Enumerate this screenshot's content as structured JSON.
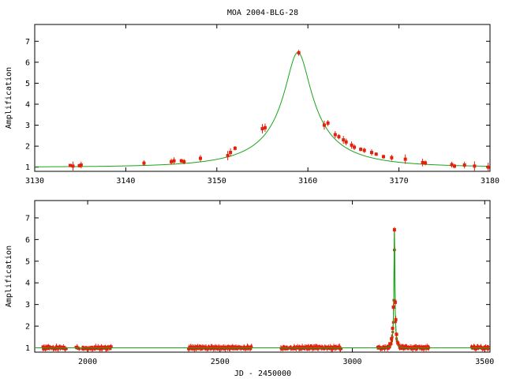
{
  "figure_title": "MOA 2004-BLG-28",
  "chart_data": [
    {
      "type": "line",
      "title": "MOA 2004-BLG-28",
      "xlabel": "",
      "ylabel": "Amplification",
      "xlim": [
        3130,
        3180
      ],
      "ylim": [
        0.8,
        7.8
      ],
      "xticks": [
        3130,
        3140,
        3150,
        3160,
        3170,
        3180
      ],
      "yticks": [
        1,
        2,
        3,
        4,
        5,
        6,
        7
      ],
      "grid": false,
      "model": {
        "t0": 3158.9,
        "u0": 0.156,
        "tE": 9.4
      },
      "series": [
        {
          "kind": "model",
          "color": "#1aa51a"
        },
        {
          "kind": "data",
          "color": "#e3200a",
          "x": [
            3133.9,
            3134.2,
            3134.9,
            3135.1,
            3142.0,
            3145.0,
            3145.3,
            3146.1,
            3146.4,
            3148.2,
            3151.2,
            3151.5,
            3152.0,
            3155.0,
            3155.3,
            3159.0,
            3161.8,
            3162.2,
            3163.0,
            3163.4,
            3163.9,
            3164.2,
            3164.8,
            3165.1,
            3165.8,
            3166.2,
            3167.0,
            3167.5,
            3168.3,
            3169.2,
            3170.7,
            3172.6,
            3172.9,
            3175.8,
            3176.1,
            3177.2,
            3178.3,
            3179.8
          ],
          "y": [
            1.08,
            1.05,
            1.07,
            1.1,
            1.19,
            1.26,
            1.3,
            1.3,
            1.26,
            1.42,
            1.55,
            1.7,
            1.9,
            2.83,
            2.88,
            6.45,
            3.0,
            3.1,
            2.55,
            2.45,
            2.3,
            2.2,
            2.05,
            1.95,
            1.85,
            1.8,
            1.7,
            1.62,
            1.5,
            1.45,
            1.38,
            1.22,
            1.2,
            1.12,
            1.05,
            1.1,
            1.05,
            1.0
          ]
        }
      ]
    },
    {
      "type": "line",
      "title": "",
      "xlabel": "JD - 2450000",
      "ylabel": "Amplification",
      "xlim": [
        1800,
        3520
      ],
      "ylim": [
        0.8,
        7.8
      ],
      "xticks": [
        2000,
        2500,
        3000,
        3500
      ],
      "yticks": [
        1,
        2,
        3,
        4,
        5,
        6,
        7
      ],
      "grid": false,
      "model": {
        "t0": 3158.9,
        "u0": 0.156,
        "tE": 9.4
      },
      "seasons": [
        [
          1830,
          1920
        ],
        [
          1955,
          1970
        ],
        [
          1980,
          2090
        ],
        [
          2380,
          2620
        ],
        [
          2730,
          2960
        ],
        [
          3095,
          3290
        ],
        [
          3450,
          3515
        ]
      ],
      "series": [
        {
          "kind": "model",
          "color": "#1aa51a"
        },
        {
          "kind": "data",
          "color": "#e3200a",
          "x": [
            3142,
            3148,
            3152,
            3155,
            3159,
            3162,
            3164,
            3167,
            3172
          ],
          "y": [
            1.19,
            1.42,
            1.9,
            2.88,
            6.45,
            3.1,
            2.3,
            1.62,
            1.22
          ]
        }
      ]
    }
  ]
}
